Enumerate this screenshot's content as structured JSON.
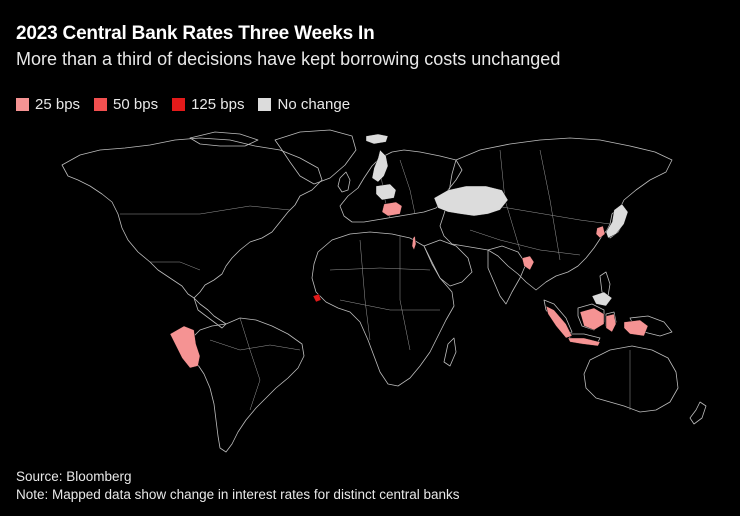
{
  "title": "2023 Central Bank Rates Three Weeks In",
  "subtitle": "More than a third of decisions have kept borrowing costs unchanged",
  "legend": [
    {
      "label": "25 bps",
      "color": "#f59393"
    },
    {
      "label": "50 bps",
      "color": "#f25050"
    },
    {
      "label": "125 bps",
      "color": "#e31a1a"
    },
    {
      "label": "No change",
      "color": "#dcdcdc"
    }
  ],
  "map_data": {
    "regions": [
      {
        "name": "Iceland",
        "category": "No change"
      },
      {
        "name": "Sweden",
        "category": "No change"
      },
      {
        "name": "Poland",
        "category": "No change"
      },
      {
        "name": "Romania",
        "category": "25 bps"
      },
      {
        "name": "Kazakhstan",
        "category": "No change"
      },
      {
        "name": "Israel",
        "category": "25 bps"
      },
      {
        "name": "Bangladesh",
        "category": "25 bps"
      },
      {
        "name": "South Korea",
        "category": "25 bps"
      },
      {
        "name": "Japan",
        "category": "No change"
      },
      {
        "name": "Malaysia",
        "category": "No change"
      },
      {
        "name": "Indonesia",
        "category": "25 bps"
      },
      {
        "name": "Peru",
        "category": "25 bps"
      },
      {
        "name": "Sierra Leone",
        "category": "125 bps"
      }
    ]
  },
  "footer": {
    "source": "Source: Bloomberg",
    "note": "Note: Mapped data show change in interest rates for distinct central banks"
  }
}
